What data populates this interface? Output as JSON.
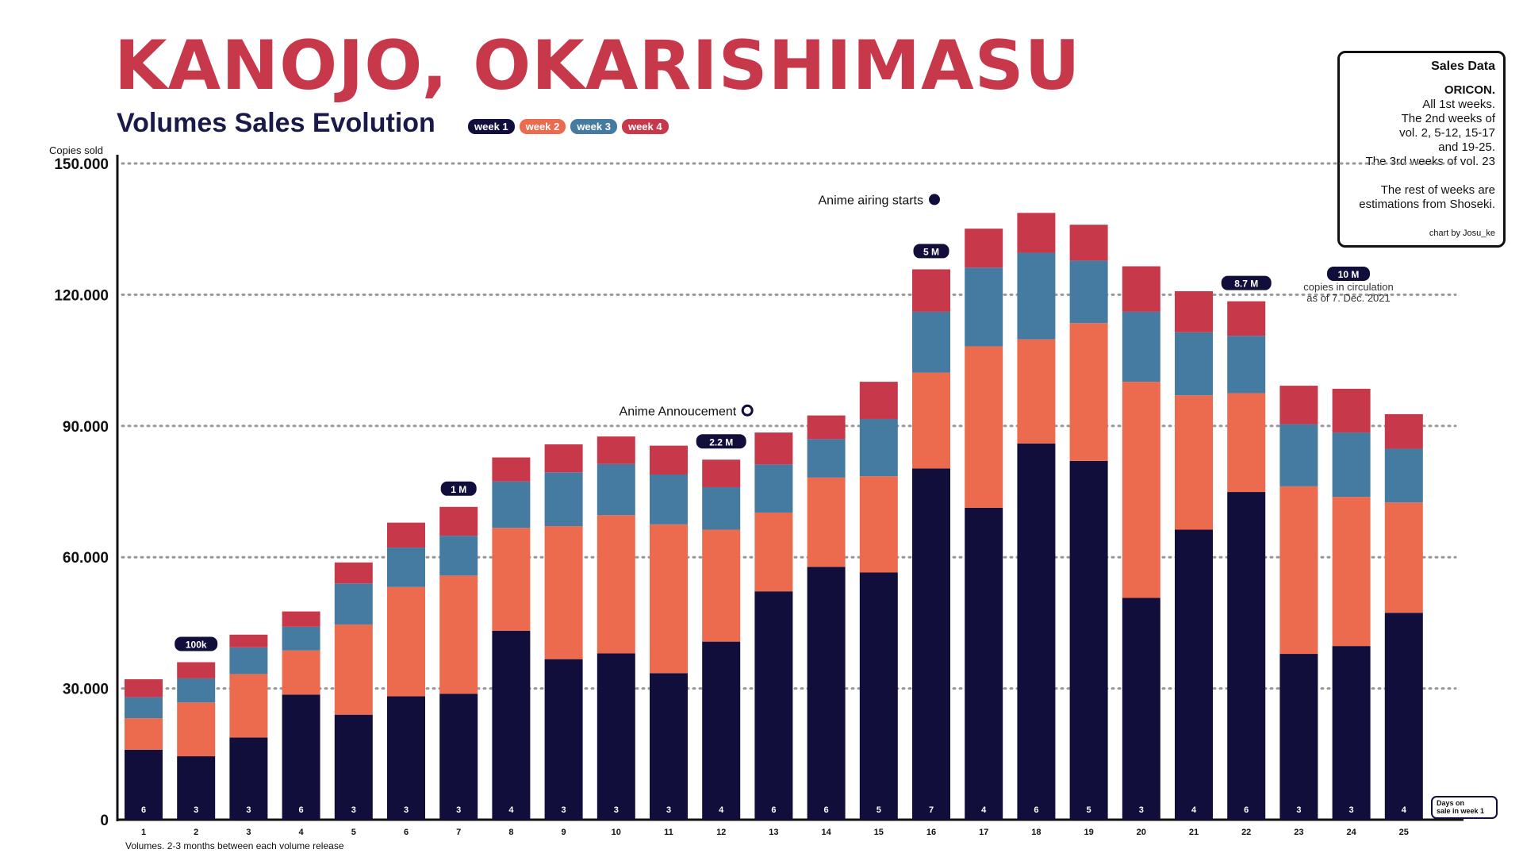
{
  "header": {
    "title": "KANOJO, OKARISHIMASU",
    "subtitle": "Volumes Sales Evolution"
  },
  "legend": [
    {
      "label": "week 1",
      "color": "#120e3b"
    },
    {
      "label": "week 2",
      "color": "#ec6a4e"
    },
    {
      "label": "week 3",
      "color": "#457ba0"
    },
    {
      "label": "week 4",
      "color": "#c8384b"
    }
  ],
  "info_box": {
    "title": "Sales Data",
    "source": "ORICON.",
    "lines": [
      "All 1st weeks.",
      "The 2nd weeks of",
      "vol.  2, 5-12, 15-17",
      "and 19-25.",
      "The 3rd weeks of vol. 23"
    ],
    "lines2": [
      "The rest of weeks are",
      "estimations from Shoseki."
    ],
    "credit": "chart by Josu_ke"
  },
  "colors": {
    "title": "#c8384b",
    "subtitle": "#1a1a4a",
    "text": "#111111",
    "badge": "#120e3b",
    "grid": "#999999"
  },
  "chart_data": {
    "type": "bar",
    "stacked": true,
    "y_axis_title": "Copies sold",
    "x_axis_title": "Volumes. 2-3 months between each volume release",
    "ylim": [
      0,
      150000
    ],
    "y_ticks": [
      0,
      30000,
      60000,
      90000,
      120000,
      150000
    ],
    "y_tick_labels": [
      "0",
      "30.000",
      "60.000",
      "90.000",
      "120.000",
      "150.000"
    ],
    "grid": true,
    "categories": [
      "1",
      "2",
      "3",
      "4",
      "5",
      "6",
      "7",
      "8",
      "9",
      "10",
      "11",
      "12",
      "13",
      "14",
      "15",
      "16",
      "17",
      "18",
      "19",
      "20",
      "21",
      "22",
      "23",
      "24",
      "25"
    ],
    "series": [
      {
        "name": "week 1",
        "values": [
          16000,
          14500,
          18800,
          28600,
          24000,
          28200,
          28800,
          43200,
          36700,
          38000,
          33500,
          40700,
          52200,
          57800,
          56500,
          80300,
          71300,
          86000,
          82000,
          50700,
          66300,
          74900,
          37900,
          39700,
          47300
        ]
      },
      {
        "name": "week 2",
        "values": [
          7200,
          12300,
          14500,
          10100,
          20600,
          25000,
          27000,
          23500,
          30400,
          31600,
          34000,
          25600,
          18000,
          20400,
          22000,
          21900,
          36900,
          23800,
          31500,
          49400,
          30700,
          22600,
          38300,
          34100,
          25200
        ]
      },
      {
        "name": "week 3",
        "values": [
          4800,
          5500,
          6100,
          5400,
          9400,
          9000,
          9100,
          10600,
          12300,
          11700,
          11400,
          9700,
          11000,
          8800,
          13100,
          13900,
          18000,
          19800,
          14300,
          16000,
          14400,
          13100,
          14200,
          14700,
          12300
        ]
      },
      {
        "name": "week 4",
        "values": [
          4100,
          3700,
          2900,
          3500,
          4800,
          5700,
          6600,
          5500,
          6400,
          6300,
          6600,
          6300,
          7300,
          5400,
          8500,
          9700,
          8900,
          9100,
          8200,
          10400,
          9400,
          7900,
          8800,
          10000,
          7900
        ]
      }
    ],
    "days_on_sale": [
      6,
      3,
      3,
      6,
      3,
      3,
      3,
      4,
      3,
      3,
      3,
      4,
      6,
      6,
      5,
      7,
      4,
      6,
      5,
      3,
      4,
      6,
      3,
      3,
      4
    ],
    "days_label": [
      "Days on",
      "sale in week 1"
    ],
    "circulation_badges": [
      {
        "volume": "2",
        "label": "100k"
      },
      {
        "volume": "7",
        "label": "1 M"
      },
      {
        "volume": "12",
        "label": "2.2 M"
      },
      {
        "volume": "16",
        "label": "5 M"
      },
      {
        "volume": "22",
        "label": "8.7 M"
      }
    ],
    "final_badge": {
      "label": "10 M",
      "note": [
        "copies in circulation",
        "as of 7. Dec. 2021"
      ]
    },
    "annotations": [
      {
        "volume": "12",
        "text": "Anime Annoucement",
        "marker": "hollow"
      },
      {
        "volume": "16",
        "text": "Anime airing starts",
        "marker": "filled"
      }
    ]
  }
}
